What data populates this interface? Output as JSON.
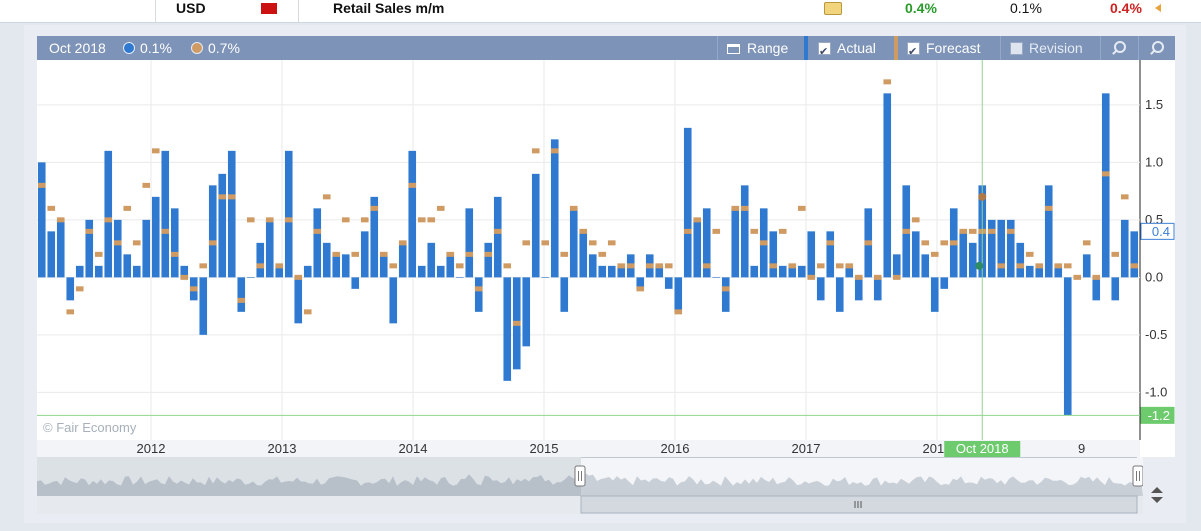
{
  "event_row": {
    "currency": "USD",
    "event": "Retail Sales m/m",
    "actual": "0.4%",
    "forecast": "0.1%",
    "previous": "0.4%",
    "colors": {
      "actual": "#2a9a2a",
      "forecast": "#111111",
      "previous": "#cc2222",
      "impact": "#cc1111"
    }
  },
  "toolbar": {
    "period": "Oct 2018",
    "actual_legend": "0.1%",
    "forecast_legend": "0.7%",
    "range_label": "Range",
    "actual_label": "Actual",
    "forecast_label": "Forecast",
    "revision_label": "Revision",
    "actual_checked": true,
    "forecast_checked": true,
    "revision_checked": false
  },
  "chart_data": {
    "type": "bar",
    "watermark": "© Fair Economy",
    "x_ticks": [
      "2012",
      "2013",
      "2014",
      "2015",
      "2016",
      "2017",
      "2018"
    ],
    "x_tick_partial": "9",
    "y_ticks": [
      "1.5",
      "1.0",
      "0.5",
      "0.0",
      "-0.5",
      "-1.0"
    ],
    "ylim": [
      -1.17,
      1.89
    ],
    "cursor_label": "Oct 2018",
    "axis_markers": [
      {
        "value": 0.4,
        "label": "0.4",
        "color": "#3c7fd6",
        "fill": "#ffffff"
      },
      {
        "value": -1.2,
        "label": "-1.2",
        "color": "#6dcb6d",
        "fill": "#6dcb6d"
      }
    ],
    "colors": {
      "actual": "#2f7ad0",
      "forecast": "#d09a63",
      "grid": "#eaeaea",
      "cursor": "#8fd68f"
    },
    "actual": [
      1.0,
      0.4,
      0.5,
      -0.2,
      0.1,
      0.5,
      0.1,
      1.1,
      0.5,
      0.2,
      0.1,
      0.5,
      0.7,
      1.1,
      0.6,
      0.1,
      -0.2,
      -0.5,
      0.8,
      0.9,
      1.1,
      -0.3,
      0.0,
      0.3,
      0.5,
      0.1,
      1.1,
      -0.4,
      0.1,
      0.6,
      0.3,
      0.2,
      0.2,
      -0.1,
      0.4,
      0.7,
      0.2,
      -0.4,
      0.3,
      1.1,
      0.1,
      0.3,
      0.1,
      0.2,
      0.0,
      0.6,
      -0.3,
      0.3,
      0.7,
      -0.9,
      -0.8,
      -0.6,
      0.9,
      0.0,
      1.2,
      -0.3,
      0.6,
      0.4,
      0.2,
      0.1,
      0.1,
      0.1,
      0.2,
      -0.1,
      0.2,
      0.1,
      -0.1,
      -0.3,
      1.3,
      0.5,
      0.6,
      0.0,
      -0.3,
      0.6,
      0.8,
      0.1,
      0.6,
      0.4,
      0.1,
      0.1,
      0.1,
      0.4,
      -0.2,
      0.4,
      -0.3,
      0.1,
      -0.2,
      0.6,
      -0.2,
      1.6,
      0.2,
      0.8,
      0.4,
      0.2,
      -0.3,
      -0.1,
      0.6,
      0.4,
      0.3,
      0.8,
      0.5,
      0.5,
      0.5,
      0.3,
      0.1,
      0.1,
      0.8,
      0.1,
      -1.2,
      0.0,
      0.2,
      -0.2,
      1.6,
      -0.2,
      0.5,
      0.4
    ],
    "forecast": [
      0.8,
      0.6,
      0.5,
      -0.3,
      -0.1,
      0.4,
      0.2,
      0.5,
      0.3,
      0.6,
      0.3,
      0.8,
      1.1,
      0.4,
      0.2,
      0.0,
      -0.1,
      0.1,
      0.3,
      0.7,
      0.7,
      -0.2,
      0.5,
      0.1,
      0.5,
      0.1,
      0.5,
      0.0,
      -0.3,
      0.4,
      0.7,
      0.2,
      0.5,
      0.2,
      0.5,
      0.6,
      0.2,
      0.1,
      0.3,
      0.8,
      0.5,
      0.5,
      0.6,
      0.2,
      0.1,
      0.2,
      -0.1,
      0.2,
      0.4,
      0.1,
      -0.4,
      0.3,
      1.1,
      0.3,
      1.1,
      0.2,
      0.6,
      0.4,
      0.3,
      0.2,
      0.3,
      0.1,
      0.1,
      -0.1,
      0.1,
      0.1,
      0.1,
      -0.3,
      0.4,
      0.5,
      0.1,
      0.4,
      -0.1,
      0.6,
      0.6,
      0.4,
      0.3,
      0.1,
      0.4,
      0.1,
      0.6,
      0.0,
      0.1,
      0.3,
      0.1,
      0.1,
      0.0,
      0.3,
      0.0,
      1.7,
      -0.0,
      0.4,
      0.5,
      0.3,
      0.2,
      0.3,
      0.3,
      0.4,
      0.4,
      0.4,
      0.4,
      0.1,
      0.4,
      0.1,
      0.2,
      0.1,
      0.6,
      0.1,
      0.1,
      -0.0,
      0.3,
      0.0,
      0.9,
      0.2,
      0.7,
      0.1
    ]
  }
}
